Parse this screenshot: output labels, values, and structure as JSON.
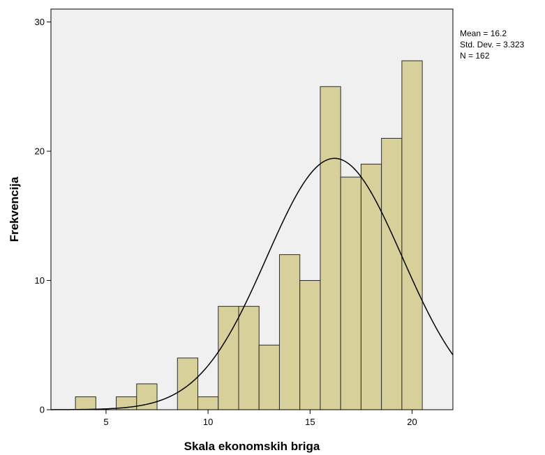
{
  "chart_data": {
    "type": "bar",
    "subtype": "histogram",
    "xlabel": "Skala ekonomskih briga",
    "ylabel": "Frekvencija",
    "xlim": [
      2.3,
      22
    ],
    "ylim": [
      0,
      31
    ],
    "x_ticks": [
      5,
      10,
      15,
      20
    ],
    "y_ticks": [
      0,
      10,
      20,
      30
    ],
    "bin_width": 1,
    "bins": [
      {
        "x": 4,
        "value": 1
      },
      {
        "x": 5,
        "value": 0
      },
      {
        "x": 6,
        "value": 1
      },
      {
        "x": 7,
        "value": 2
      },
      {
        "x": 8,
        "value": 0
      },
      {
        "x": 9,
        "value": 4
      },
      {
        "x": 10,
        "value": 1
      },
      {
        "x": 11,
        "value": 8
      },
      {
        "x": 12,
        "value": 8
      },
      {
        "x": 13,
        "value": 5
      },
      {
        "x": 14,
        "value": 12
      },
      {
        "x": 15,
        "value": 10
      },
      {
        "x": 16,
        "value": 25
      },
      {
        "x": 17,
        "value": 18
      },
      {
        "x": 18,
        "value": 19
      },
      {
        "x": 19,
        "value": 21
      },
      {
        "x": 20,
        "value": 27
      }
    ],
    "normal_curve": {
      "mean": 16.2,
      "std_dev": 3.323,
      "n": 162
    },
    "stats_box": {
      "mean_text": "Mean = 16.2",
      "std_text": "Std. Dev. = 3.323",
      "n_text": "N = 162"
    },
    "grid": false,
    "legend": "none",
    "colors": {
      "plot_background": "#f0f0f0",
      "bar_fill": "#d8d09b",
      "bar_stroke": "#2b2b2b",
      "curve": "#000000"
    }
  }
}
